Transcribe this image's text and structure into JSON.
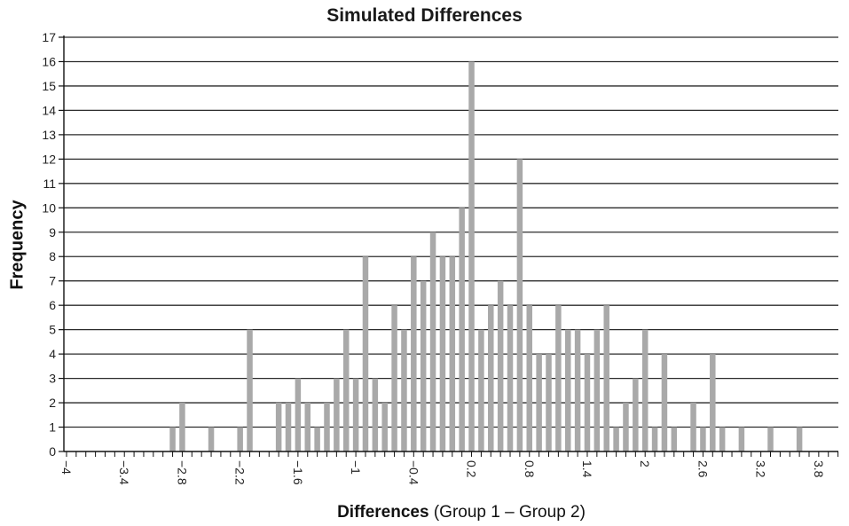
{
  "chart_data": {
    "type": "bar",
    "title": "Simulated Differences",
    "ylabel": "Frequency",
    "xlabel_bold": "Differences",
    "xlabel_rest": "(Group 1 – Group 2)",
    "ylim": [
      0,
      17
    ],
    "xlim": [
      -4.1,
      4.1
    ],
    "yticks": [
      0,
      1,
      2,
      3,
      4,
      5,
      6,
      7,
      8,
      9,
      10,
      11,
      12,
      13,
      14,
      15,
      16,
      17
    ],
    "xtick_labels": [
      {
        "x": -4.0,
        "label": "−4"
      },
      {
        "x": -3.4,
        "label": "−3.4"
      },
      {
        "x": -2.8,
        "label": "−2.8"
      },
      {
        "x": -2.2,
        "label": "−2.2"
      },
      {
        "x": -1.6,
        "label": "−1.6"
      },
      {
        "x": -1.0,
        "label": "−1"
      },
      {
        "x": -0.4,
        "label": "−0.4"
      },
      {
        "x": 0.2,
        "label": "0.2"
      },
      {
        "x": 0.8,
        "label": "0.8"
      },
      {
        "x": 1.4,
        "label": "1.4"
      },
      {
        "x": 2.0,
        "label": "2"
      },
      {
        "x": 2.6,
        "label": "2.6"
      },
      {
        "x": 3.2,
        "label": "3.2"
      },
      {
        "x": 3.8,
        "label": "3.8"
      }
    ],
    "grid": "horizontal",
    "colors": {
      "bar": "#a9a9a9",
      "grid": "#2b2b2b",
      "axis": "#111111"
    },
    "bins": [
      {
        "x": -2.9,
        "y": 1
      },
      {
        "x": -2.8,
        "y": 2
      },
      {
        "x": -2.5,
        "y": 1
      },
      {
        "x": -2.2,
        "y": 1
      },
      {
        "x": -2.1,
        "y": 5
      },
      {
        "x": -1.8,
        "y": 2
      },
      {
        "x": -1.7,
        "y": 2
      },
      {
        "x": -1.6,
        "y": 3
      },
      {
        "x": -1.5,
        "y": 2
      },
      {
        "x": -1.4,
        "y": 1
      },
      {
        "x": -1.3,
        "y": 2
      },
      {
        "x": -1.2,
        "y": 3
      },
      {
        "x": -1.1,
        "y": 5
      },
      {
        "x": -1.0,
        "y": 3
      },
      {
        "x": -0.9,
        "y": 8
      },
      {
        "x": -0.8,
        "y": 3
      },
      {
        "x": -0.7,
        "y": 2
      },
      {
        "x": -0.6,
        "y": 6
      },
      {
        "x": -0.5,
        "y": 5
      },
      {
        "x": -0.4,
        "y": 8
      },
      {
        "x": -0.3,
        "y": 7
      },
      {
        "x": -0.2,
        "y": 9
      },
      {
        "x": -0.1,
        "y": 8
      },
      {
        "x": 0.0,
        "y": 8
      },
      {
        "x": 0.1,
        "y": 10
      },
      {
        "x": 0.2,
        "y": 16
      },
      {
        "x": 0.3,
        "y": 5
      },
      {
        "x": 0.4,
        "y": 6
      },
      {
        "x": 0.5,
        "y": 7
      },
      {
        "x": 0.6,
        "y": 6
      },
      {
        "x": 0.7,
        "y": 12
      },
      {
        "x": 0.8,
        "y": 6
      },
      {
        "x": 0.9,
        "y": 4
      },
      {
        "x": 1.0,
        "y": 4
      },
      {
        "x": 1.1,
        "y": 6
      },
      {
        "x": 1.2,
        "y": 5
      },
      {
        "x": 1.3,
        "y": 5
      },
      {
        "x": 1.4,
        "y": 4
      },
      {
        "x": 1.5,
        "y": 5
      },
      {
        "x": 1.6,
        "y": 6
      },
      {
        "x": 1.7,
        "y": 1
      },
      {
        "x": 1.8,
        "y": 2
      },
      {
        "x": 1.9,
        "y": 3
      },
      {
        "x": 2.0,
        "y": 5
      },
      {
        "x": 2.1,
        "y": 1
      },
      {
        "x": 2.2,
        "y": 4
      },
      {
        "x": 2.3,
        "y": 1
      },
      {
        "x": 2.5,
        "y": 2
      },
      {
        "x": 2.6,
        "y": 1
      },
      {
        "x": 2.7,
        "y": 4
      },
      {
        "x": 2.8,
        "y": 1
      },
      {
        "x": 3.0,
        "y": 1
      },
      {
        "x": 3.3,
        "y": 1
      },
      {
        "x": 3.6,
        "y": 1
      }
    ]
  }
}
